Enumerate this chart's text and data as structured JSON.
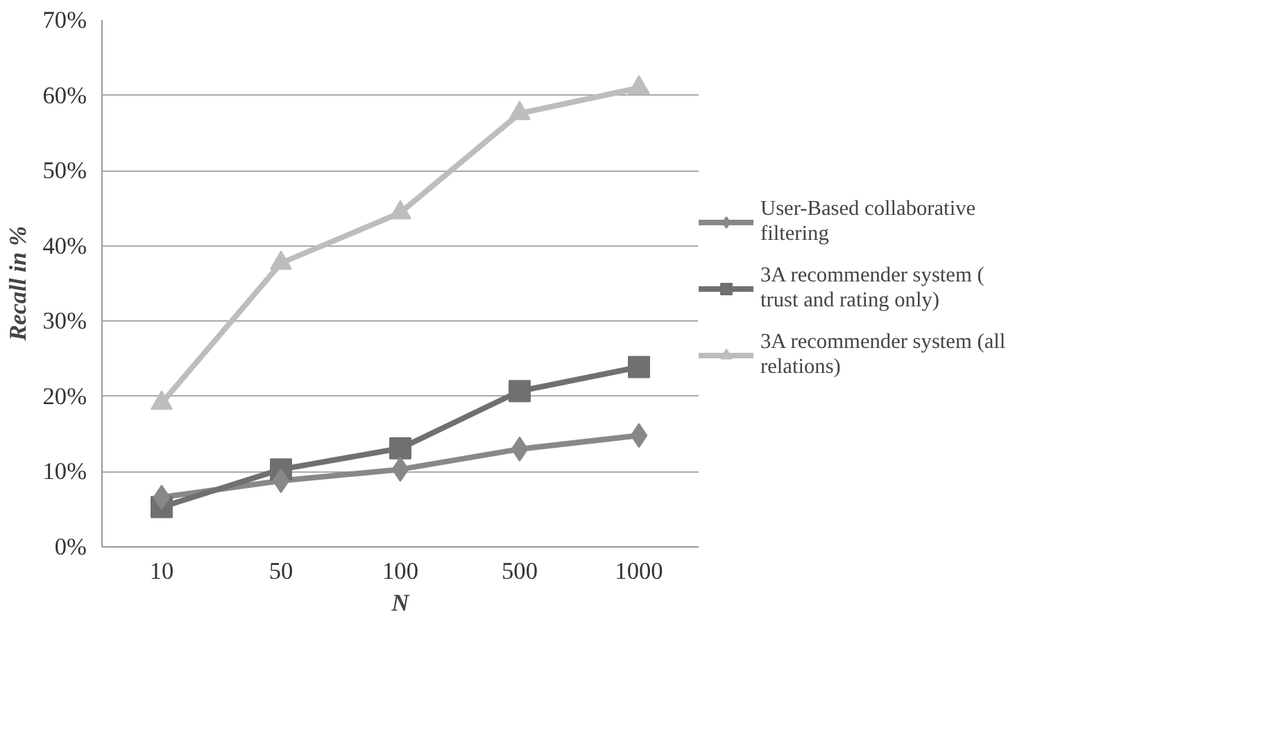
{
  "chart_data": {
    "type": "line",
    "xlabel": "N",
    "ylabel": "Recall in %",
    "categories": [
      "10",
      "50",
      "100",
      "500",
      "1000"
    ],
    "series": [
      {
        "name": "User-Based collaborative filtering",
        "color": "#888888",
        "marker": "diamond",
        "values": [
          6.6,
          8.8,
          10.3,
          13.0,
          14.8
        ]
      },
      {
        "name": "3A recommender system ( trust and rating only)",
        "color": "#707070",
        "marker": "square",
        "values": [
          5.3,
          10.3,
          13.1,
          20.7,
          23.9
        ]
      },
      {
        "name": "3A recommender system (all relations)",
        "color": "#bdbdbd",
        "marker": "triangle",
        "values": [
          19.1,
          37.7,
          44.4,
          57.6,
          61.0
        ]
      }
    ],
    "ylim": [
      0,
      70
    ],
    "yticks": [
      {
        "value": 0,
        "label": "0%"
      },
      {
        "value": 10,
        "label": "10%"
      },
      {
        "value": 20,
        "label": "20%"
      },
      {
        "value": 30,
        "label": "30%"
      },
      {
        "value": 40,
        "label": "40%"
      },
      {
        "value": 50,
        "label": "50%"
      },
      {
        "value": 60,
        "label": "60%"
      },
      {
        "value": 70,
        "label": "70%"
      }
    ],
    "grid": "y",
    "legend": "right",
    "line_style": "solid"
  }
}
